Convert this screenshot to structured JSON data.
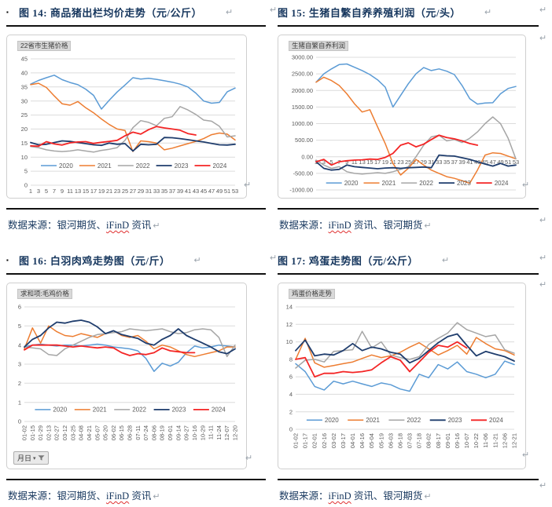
{
  "ui": {
    "pilcrow": "↵",
    "caret": "▾"
  },
  "figures": [
    {
      "bullet_char": "▪",
      "caption": "图 14: 商品猪出栏均价走势（元/公斤）",
      "source_pre": "数据来源：银河期货、",
      "source_ifind": "iFinD",
      "source_post": " 资讯"
    },
    {
      "bullet_char": "",
      "caption": "图 15: 生猪自繁自养养殖利润（元/头）",
      "source_pre": "数据来源：",
      "source_ifind": "iFinD",
      "source_post": " 资讯、银河期货"
    },
    {
      "bullet_char": "▪",
      "caption": "图 16: 白羽肉鸡走势图（元/斤）",
      "source_pre": "数据来源：银河期货、",
      "source_ifind": "iFinD",
      "source_post": " 资讯"
    },
    {
      "bullet_char": "",
      "caption": "图 17: 鸡蛋走势图（元/公斤）",
      "source_pre": "数据来源：",
      "source_ifind": "iFinD",
      "source_post": " 资讯、银河期货"
    }
  ],
  "chart_data": [
    {
      "type": "line",
      "title": "22省市生猪价格",
      "xlabel": "",
      "ylabel": "",
      "x": [
        "1",
        "3",
        "5",
        "7",
        "9",
        "11",
        "13",
        "15",
        "17",
        "19",
        "21",
        "23",
        "25",
        "27",
        "29",
        "31",
        "33",
        "35",
        "37",
        "39",
        "41",
        "43",
        "45",
        "47",
        "49",
        "51",
        "53"
      ],
      "ylim": [
        0,
        45
      ],
      "yticks": [
        45,
        40,
        35,
        30,
        25,
        20,
        15,
        10,
        5,
        0
      ],
      "ytick_decimals": 0,
      "x_at_zero": false,
      "rotate_x": false,
      "grid": true,
      "legend_position": "inside-bottom",
      "legend_y": 7,
      "series": [
        {
          "name": "2020",
          "color": "#5b9bd5",
          "width": 1.5,
          "values": [
            36,
            37.3,
            38.3,
            39.2,
            37.6,
            36.6,
            35.8,
            34.2,
            32,
            27.1,
            30.3,
            33.2,
            35.7,
            38.3,
            37.8,
            38.1,
            37.7,
            37.2,
            36.7,
            36,
            35,
            32.8,
            30,
            29.2,
            29.5,
            33.3,
            34.6
          ]
        },
        {
          "name": "2021",
          "color": "#ed7d31",
          "width": 1.5,
          "values": [
            35.8,
            36.3,
            34.8,
            31.8,
            29,
            28.5,
            29.8,
            27.6,
            25.8,
            23.6,
            21.6,
            20,
            19.5,
            12,
            15.8,
            15.5,
            15,
            12.6,
            13.2,
            14,
            14.8,
            15.6,
            16.6,
            18,
            18.6,
            18.2,
            16.1
          ]
        },
        {
          "name": "2022",
          "color": "#a6a6a6",
          "width": 1.5,
          "values": [
            13.8,
            13.4,
            12.6,
            12.2,
            12,
            12.2,
            12.6,
            12.2,
            11.8,
            12.4,
            12.8,
            13.4,
            16,
            20.5,
            23,
            22.4,
            21.2,
            23.8,
            24.4,
            28,
            26.8,
            25.2,
            23.2,
            22.8,
            21,
            17.2,
            17.6
          ]
        },
        {
          "name": "2023",
          "color": "#1f3d6d",
          "width": 1.8,
          "values": [
            15.2,
            14.4,
            14.6,
            15.2,
            15.8,
            15.6,
            15.2,
            14.8,
            14.4,
            14.2,
            15,
            14.6,
            14.8,
            12.2,
            14.6,
            14.4,
            14.6,
            17,
            16.9,
            16.6,
            16.2,
            15.8,
            15.4,
            14.9,
            14.4,
            14.3,
            14.6
          ]
        },
        {
          "name": "2024",
          "color": "#f42525",
          "width": 1.8,
          "values": [
            14,
            13.9,
            15.5,
            14.7,
            14.3,
            15.1,
            15.4,
            15.5,
            14.9,
            15.3,
            15.6,
            16,
            17.6,
            18.9,
            18.2,
            19.8,
            20.9,
            20.4,
            20,
            19.6,
            18.4,
            17.9,
            null,
            null,
            null,
            null,
            null
          ]
        }
      ]
    },
    {
      "type": "line",
      "title": "生猪自繁自养利润",
      "xlabel": "",
      "ylabel": "",
      "x": [
        "1",
        "3",
        "5",
        "7",
        "9",
        "11",
        "13",
        "15",
        "17",
        "19",
        "21",
        "23",
        "25",
        "27",
        "29",
        "31",
        "33",
        "35",
        "37",
        "39",
        "41",
        "43",
        "45",
        "47",
        "49",
        "51",
        "53"
      ],
      "ylim": [
        -1000,
        3000
      ],
      "yticks": [
        3000,
        2500,
        2000,
        1500,
        1000,
        500,
        0,
        -500,
        -1000
      ],
      "ytick_decimals": 2,
      "x_at_zero": true,
      "rotate_x": false,
      "grid": true,
      "legend_position": "inside-bottom",
      "legend_y": -790,
      "series": [
        {
          "name": "2020",
          "color": "#5b9bd5",
          "width": 1.5,
          "values": [
            2250,
            2500,
            2650,
            2780,
            2800,
            2700,
            2600,
            2480,
            2320,
            2100,
            1500,
            1850,
            2200,
            2500,
            2690,
            2600,
            2650,
            2580,
            2480,
            2150,
            1750,
            1590,
            1620,
            1630,
            1900,
            2060,
            2120
          ]
        },
        {
          "name": "2021",
          "color": "#ed7d31",
          "width": 1.5,
          "values": [
            2250,
            2400,
            2300,
            2150,
            1900,
            1600,
            1350,
            1420,
            900,
            400,
            -200,
            -550,
            -350,
            -80,
            -250,
            -400,
            -500,
            -600,
            -650,
            -720,
            -800,
            -400,
            50,
            120,
            100,
            20,
            -60
          ]
        },
        {
          "name": "2022",
          "color": "#a6a6a6",
          "width": 1.5,
          "values": [
            -100,
            -250,
            -350,
            -300,
            -450,
            -500,
            -520,
            -500,
            -480,
            -500,
            -450,
            -380,
            -300,
            0,
            350,
            600,
            650,
            480,
            520,
            430,
            560,
            750,
            1000,
            1200,
            1000,
            560,
            -60
          ]
        },
        {
          "name": "2023",
          "color": "#1f3d6d",
          "width": 1.8,
          "values": [
            -150,
            -350,
            -400,
            -380,
            -250,
            -300,
            -320,
            -340,
            -360,
            -340,
            -330,
            -350,
            -330,
            -320,
            -310,
            -330,
            50,
            30,
            20,
            -30,
            -80,
            -150,
            -220,
            -280,
            -200,
            -280,
            -250
          ]
        },
        {
          "name": "2024",
          "color": "#f42525",
          "width": 1.8,
          "values": [
            -150,
            -80,
            -250,
            -150,
            -120,
            -100,
            -90,
            -70,
            -80,
            -20,
            100,
            350,
            420,
            300,
            380,
            520,
            650,
            580,
            540,
            480,
            400,
            350,
            null,
            null,
            null,
            null,
            null
          ]
        }
      ]
    },
    {
      "type": "line",
      "title": "求和项:毛鸡价格",
      "filter_button": "月日",
      "xlabel": "",
      "ylabel": "",
      "x": [
        "01-02",
        "01-15",
        "01-29",
        "02-13",
        "02-27",
        "03-12",
        "03-25",
        "04-08",
        "04-21",
        "05-07",
        "05-20",
        "06-02",
        "06-15",
        "06-28",
        "07-11",
        "07-24",
        "08-06",
        "08-19",
        "09-01",
        "09-14",
        "09-27",
        "10-16",
        "10-29",
        "11-11",
        "11-24",
        "12-07",
        "12-20"
      ],
      "ylim": [
        0,
        6
      ],
      "yticks": [
        6,
        5,
        4,
        3,
        2,
        1,
        0
      ],
      "ytick_decimals": 0,
      "x_at_zero": false,
      "rotate_x": true,
      "grid": true,
      "legend_position": "inside-bottom",
      "legend_y": 0.62,
      "series": [
        {
          "name": "2020",
          "color": "#5b9bd5",
          "width": 1.5,
          "values": [
            3.9,
            4,
            4.05,
            4,
            3.95,
            4,
            4,
            3.95,
            4,
            4.05,
            4,
            3.9,
            3.85,
            3.8,
            3.7,
            3.3,
            2.62,
            3.05,
            2.9,
            3.1,
            3.6,
            3.95,
            3.85,
            3.9,
            4,
            3.95,
            3.9
          ]
        },
        {
          "name": "2021",
          "color": "#ed7d31",
          "width": 1.5,
          "values": [
            3.8,
            4.9,
            4.1,
            5,
            4.7,
            4.5,
            4.45,
            4.6,
            4.5,
            4.4,
            4.6,
            4.75,
            4.5,
            4.4,
            4.5,
            4.2,
            3.8,
            4,
            3.9,
            3.7,
            3.5,
            3.4,
            3.5,
            3.6,
            3.7,
            3.9,
            3.9
          ]
        },
        {
          "name": "2022",
          "color": "#a6a6a6",
          "width": 1.5,
          "values": [
            3.9,
            3.85,
            3.8,
            3.5,
            3.45,
            3.8,
            4,
            4.2,
            4.4,
            4.55,
            4.6,
            4.65,
            4.7,
            4.85,
            4.8,
            4.75,
            4.8,
            4.85,
            4.7,
            4.6,
            4.65,
            4.8,
            4.85,
            4.8,
            4.4,
            3.4,
            4
          ]
        },
        {
          "name": "2023",
          "color": "#1f3d6d",
          "width": 1.8,
          "values": [
            3.9,
            4.3,
            4.5,
            4.9,
            5.2,
            5.15,
            5.25,
            5.3,
            5.2,
            4.95,
            4.6,
            4.75,
            4.55,
            4.45,
            4.35,
            4.1,
            4,
            4.3,
            4.5,
            4.85,
            4.5,
            4.3,
            4.1,
            3.9,
            3.65,
            3.55,
            3.8
          ]
        },
        {
          "name": "2024",
          "color": "#f42525",
          "width": 1.8,
          "values": [
            3.75,
            4,
            4,
            4,
            4,
            3.95,
            3.9,
            3.95,
            3.9,
            3.85,
            3.9,
            3.85,
            3.6,
            3.45,
            3.55,
            3.5,
            3.6,
            3.85,
            3.7,
            3.65,
            3.6,
            3.6,
            null,
            null,
            null,
            null,
            null
          ]
        }
      ]
    },
    {
      "type": "line",
      "title": "鸡蛋价格走势",
      "xlabel": "",
      "ylabel": "",
      "x": [
        "01-02",
        "01-17",
        "02-01",
        "02-16",
        "03-02",
        "03-17",
        "04-01",
        "04-16",
        "05-04",
        "05-19",
        "06-03",
        "06-18",
        "07-03",
        "07-18",
        "08-02",
        "08-17",
        "09-01",
        "09-16",
        "10-07",
        "10-22",
        "11-06",
        "11-21",
        "12-06",
        "12-21"
      ],
      "ylim": [
        0,
        14
      ],
      "yticks": [
        14,
        12,
        10,
        8,
        6,
        4,
        2,
        0
      ],
      "ytick_decimals": 0,
      "x_at_zero": false,
      "rotate_x": true,
      "grid": true,
      "legend_position": "inside-bottom",
      "legend_y": 1.05,
      "series": [
        {
          "name": "2020",
          "color": "#5b9bd5",
          "width": 1.5,
          "values": [
            7.5,
            6.6,
            4.9,
            4.5,
            5.5,
            5.2,
            5.5,
            5.2,
            4.9,
            5.3,
            5.1,
            4.6,
            4.35,
            6.3,
            5.9,
            7.4,
            6.9,
            7.7,
            6.6,
            6.3,
            5.9,
            6.3,
            7.8,
            7.4
          ]
        },
        {
          "name": "2021",
          "color": "#ed7d31",
          "width": 1.5,
          "values": [
            8,
            10.4,
            7.6,
            7.1,
            7.3,
            7.5,
            7.7,
            8.1,
            8.5,
            8.2,
            8.4,
            8.8,
            9.4,
            9.9,
            9.2,
            8.5,
            9,
            9.6,
            8.6,
            10.5,
            9.8,
            9.2,
            9,
            8.5
          ]
        },
        {
          "name": "2022",
          "color": "#a6a6a6",
          "width": 1.5,
          "values": [
            7,
            7.9,
            8,
            7.7,
            8.9,
            9,
            9.1,
            11.2,
            9.3,
            10,
            8.5,
            8.2,
            8,
            8.3,
            9.7,
            10.4,
            11,
            12.2,
            11.4,
            11,
            10.6,
            10.8,
            9.1,
            8.7
          ]
        },
        {
          "name": "2023",
          "color": "#1f3d6d",
          "width": 1.8,
          "values": [
            9,
            10.2,
            8.4,
            8.6,
            8.5,
            9,
            9.8,
            9,
            9.4,
            9.2,
            8.8,
            8.6,
            7.6,
            8.1,
            9,
            9.9,
            10.6,
            10.9,
            9.6,
            8.4,
            8.9,
            8.6,
            8.3,
            7.8
          ]
        },
        {
          "name": "2024",
          "color": "#f42525",
          "width": 1.8,
          "values": [
            8,
            8.2,
            6,
            6.4,
            6.4,
            6.6,
            6.5,
            6.6,
            6.8,
            7.6,
            8.3,
            7.9,
            6.6,
            7.7,
            8.8,
            9.6,
            9.4,
            10,
            9.3,
            null,
            null,
            null,
            null,
            null
          ]
        }
      ]
    }
  ]
}
